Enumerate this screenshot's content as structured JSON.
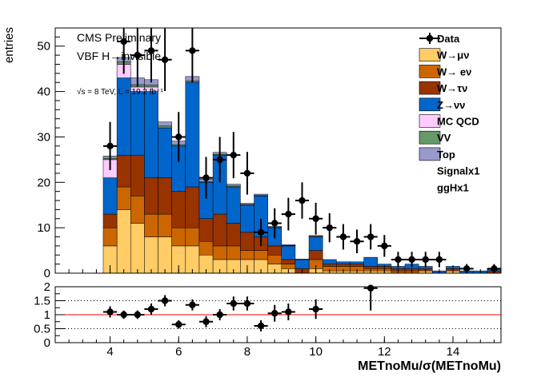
{
  "chart_data": [
    {
      "type": "bar",
      "stacked": true,
      "ylabel": "entries",
      "xlim": [
        2.4,
        15.4
      ],
      "ylim": [
        0,
        54
      ],
      "x_ticks": [
        4,
        6,
        8,
        10,
        12,
        14
      ],
      "y_ticks": [
        0,
        10,
        20,
        30,
        40,
        50
      ],
      "annotations": {
        "line1": "CMS Preliminary",
        "line2": "VBF H→invisible",
        "lumi": "√s = 8 TeV, L = 19.2 fb⁻¹"
      },
      "bins": {
        "low": [
          3.8,
          4.2,
          4.6,
          5.0,
          5.4,
          5.8,
          6.2,
          6.6,
          7.0,
          7.4,
          7.8,
          8.2,
          8.6,
          9.0,
          9.4,
          9.8,
          10.2,
          10.6,
          11.0,
          11.4,
          11.8,
          12.2,
          12.6,
          13.0,
          13.4,
          13.8,
          14.2,
          14.6,
          15.0
        ],
        "high": [
          4.2,
          4.6,
          5.0,
          5.4,
          5.8,
          6.2,
          6.6,
          7.0,
          7.4,
          7.8,
          8.2,
          8.6,
          9.0,
          9.4,
          9.8,
          10.2,
          10.6,
          11.0,
          11.4,
          11.8,
          12.2,
          12.6,
          13.0,
          13.4,
          13.8,
          14.2,
          14.6,
          15.0,
          15.4
        ]
      },
      "series": [
        {
          "name": "W→μν",
          "color": "#ffcc66",
          "values": [
            6,
            14,
            11,
            8,
            8,
            6,
            6,
            4,
            3,
            3,
            3,
            3,
            2,
            1,
            0,
            1,
            0.5,
            0.5,
            0.5,
            0.5,
            0.5,
            0,
            0,
            0.5,
            0,
            0.5,
            0,
            0,
            0
          ]
        },
        {
          "name": "W→ eν",
          "color": "#cc6600",
          "values": [
            4,
            5,
            6,
            5,
            5,
            4,
            4,
            3,
            3,
            3,
            2,
            2,
            2,
            1,
            0,
            2,
            1,
            1,
            1,
            0.5,
            0.5,
            0.5,
            0.5,
            0,
            0,
            0,
            0,
            0,
            0
          ]
        },
        {
          "name": "W→τν",
          "color": "#993300",
          "values": [
            3,
            7,
            9,
            8,
            8,
            8,
            9,
            5,
            7,
            5,
            4,
            3,
            2,
            1,
            1,
            2,
            0.5,
            0.5,
            0.5,
            0.5,
            0.5,
            0.5,
            0.5,
            0.5,
            0,
            0.5,
            0,
            0,
            0.5
          ]
        },
        {
          "name": "Z→νν",
          "color": "#0066cc",
          "values": [
            8,
            17,
            14,
            19,
            11,
            10,
            23,
            8,
            13,
            8,
            6,
            9,
            4,
            3,
            2,
            3,
            1,
            0.5,
            0.5,
            2,
            0.5,
            0.5,
            1,
            0.5,
            0.5,
            0.5,
            0.5,
            0.5,
            0.5
          ]
        },
        {
          "name": "MC QCD",
          "color": "#ffccff",
          "values": [
            4,
            3,
            1,
            1,
            0,
            0,
            0,
            0,
            0,
            0,
            0,
            0,
            0,
            0,
            0,
            0,
            0,
            0,
            0,
            0,
            0,
            0,
            0,
            0,
            0,
            0,
            0,
            0,
            0
          ]
        },
        {
          "name": "VV",
          "color": "#669966",
          "values": [
            0.3,
            0.5,
            0.5,
            0.4,
            0.4,
            0.3,
            0.3,
            0.2,
            0.2,
            0.2,
            0.1,
            0.1,
            0.1,
            0.1,
            0,
            0.1,
            0,
            0,
            0,
            0,
            0,
            0,
            0,
            0,
            0,
            0,
            0,
            0,
            0
          ]
        },
        {
          "name": "Top",
          "color": "#9999cc",
          "values": [
            0.5,
            1,
            1.5,
            1.2,
            0.9,
            0.8,
            1,
            0.5,
            0.4,
            0.4,
            0.3,
            0.3,
            0.2,
            0.2,
            0.1,
            0.2,
            0,
            0,
            0,
            0,
            0,
            0,
            0,
            0,
            0,
            0,
            0,
            0,
            0
          ]
        },
        {
          "name": "Signalx1",
          "color": "#ffffff",
          "values": []
        },
        {
          "name": "ggHx1",
          "color": "#ffffff",
          "values": []
        }
      ],
      "data": {
        "name": "Data",
        "x": [
          4.0,
          4.4,
          4.8,
          5.2,
          5.6,
          6.0,
          6.4,
          6.8,
          7.2,
          7.6,
          8.0,
          8.4,
          8.8,
          9.2,
          9.6,
          10.0,
          10.4,
          10.8,
          11.2,
          11.6,
          12.0,
          12.4,
          12.8,
          13.2,
          13.6,
          14.4,
          15.2
        ],
        "y": [
          28,
          51,
          48,
          49,
          47,
          30,
          49,
          21,
          25,
          26,
          22,
          9,
          11,
          13,
          16,
          12,
          10,
          8,
          7,
          8,
          6,
          3,
          3,
          3,
          3,
          1,
          1
        ],
        "err": [
          5.3,
          7.1,
          6.9,
          7.0,
          6.9,
          5.5,
          7.0,
          4.6,
          5.0,
          5.1,
          4.7,
          3.0,
          3.3,
          3.6,
          4.0,
          3.5,
          3.2,
          2.8,
          2.6,
          2.8,
          2.4,
          1.7,
          1.7,
          1.7,
          1.7,
          1.0,
          1.0
        ]
      }
    },
    {
      "type": "scatter",
      "xlabel": "METnoMu/σ(METnoMu)",
      "xlim": [
        2.4,
        15.4
      ],
      "ylim": [
        0,
        2
      ],
      "x_ticks": [
        4,
        6,
        8,
        10,
        12,
        14
      ],
      "y_ticks": [
        0,
        0.5,
        1,
        1.5,
        2
      ],
      "y_tick_labels": [
        "0",
        "0.5",
        "1",
        "1.5",
        "2"
      ],
      "reference_line": 1,
      "dotted_lines": [
        0.5,
        1.5
      ],
      "points": {
        "x": [
          4.0,
          4.4,
          4.8,
          5.2,
          5.6,
          6.0,
          6.4,
          6.8,
          7.2,
          7.6,
          8.0,
          8.4,
          8.8,
          9.2,
          10.0,
          11.6
        ],
        "y": [
          1.1,
          1.0,
          1.0,
          1.2,
          1.5,
          0.65,
          1.35,
          0.75,
          1.0,
          1.4,
          1.4,
          0.6,
          1.05,
          1.1,
          1.2,
          1.95
        ],
        "err": [
          0.2,
          0.15,
          0.15,
          0.2,
          0.2,
          0.15,
          0.2,
          0.2,
          0.2,
          0.25,
          0.25,
          0.2,
          0.3,
          0.3,
          0.35,
          0.8
        ]
      }
    }
  ]
}
